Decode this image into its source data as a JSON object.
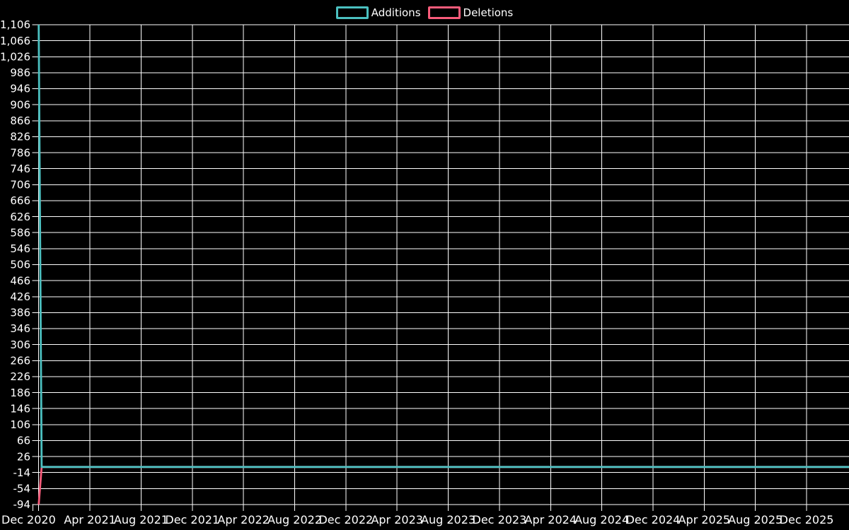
{
  "page": {
    "background": "#000000"
  },
  "legend": {
    "position": "top-center",
    "items": [
      {
        "label": "Additions",
        "color": "#4bc0c0",
        "swatch_style": "outlined-rect"
      },
      {
        "label": "Deletions",
        "color": "#f95c7b",
        "swatch_style": "outlined-rect"
      }
    ]
  },
  "chart_data": {
    "type": "line",
    "title": "",
    "grid": true,
    "legend_position": "top-center",
    "colors": {
      "background": "#000000",
      "grid": "#ffffff",
      "text": "#ffffff",
      "additions": "#4bc0c0",
      "deletions": "#f95c7b"
    },
    "x_axis": {
      "start_label": "Dec 2020",
      "end_label": "Dec 2025",
      "tick_interval": "4 months",
      "tick_labels": [
        "Dec 2020",
        "Apr 2021",
        "Aug 2021",
        "Dec 2021",
        "Apr 2022",
        "Aug 2022",
        "Dec 2022",
        "Apr 2023",
        "Aug 2023",
        "Dec 2023",
        "Apr 2024",
        "Aug 2024",
        "Dec 2024",
        "Apr 2025",
        "Aug 2025",
        "Dec 2025"
      ]
    },
    "y_axis": {
      "min": -94,
      "max": 1106,
      "step": 40,
      "tick_labels": [
        "1,106",
        "1,066",
        "1,026",
        "986",
        "946",
        "906",
        "866",
        "826",
        "786",
        "746",
        "706",
        "666",
        "626",
        "586",
        "546",
        "506",
        "466",
        "426",
        "386",
        "346",
        "306",
        "266",
        "226",
        "186",
        "146",
        "106",
        "66",
        "26",
        "-14",
        "-54",
        "-94"
      ]
    },
    "series": [
      {
        "name": "Additions",
        "color": "#4bc0c0",
        "points_weekly": [
          {
            "week_index": 0,
            "value": 1106
          },
          {
            "week_index": 1,
            "value": 0
          }
        ],
        "flat_value_through_end": 0
      },
      {
        "name": "Deletions",
        "color": "#f95c7b",
        "points_weekly": [
          {
            "week_index": 0,
            "value": -94
          },
          {
            "week_index": 1,
            "value": 0
          }
        ],
        "flat_value_through_end": 0
      }
    ]
  }
}
